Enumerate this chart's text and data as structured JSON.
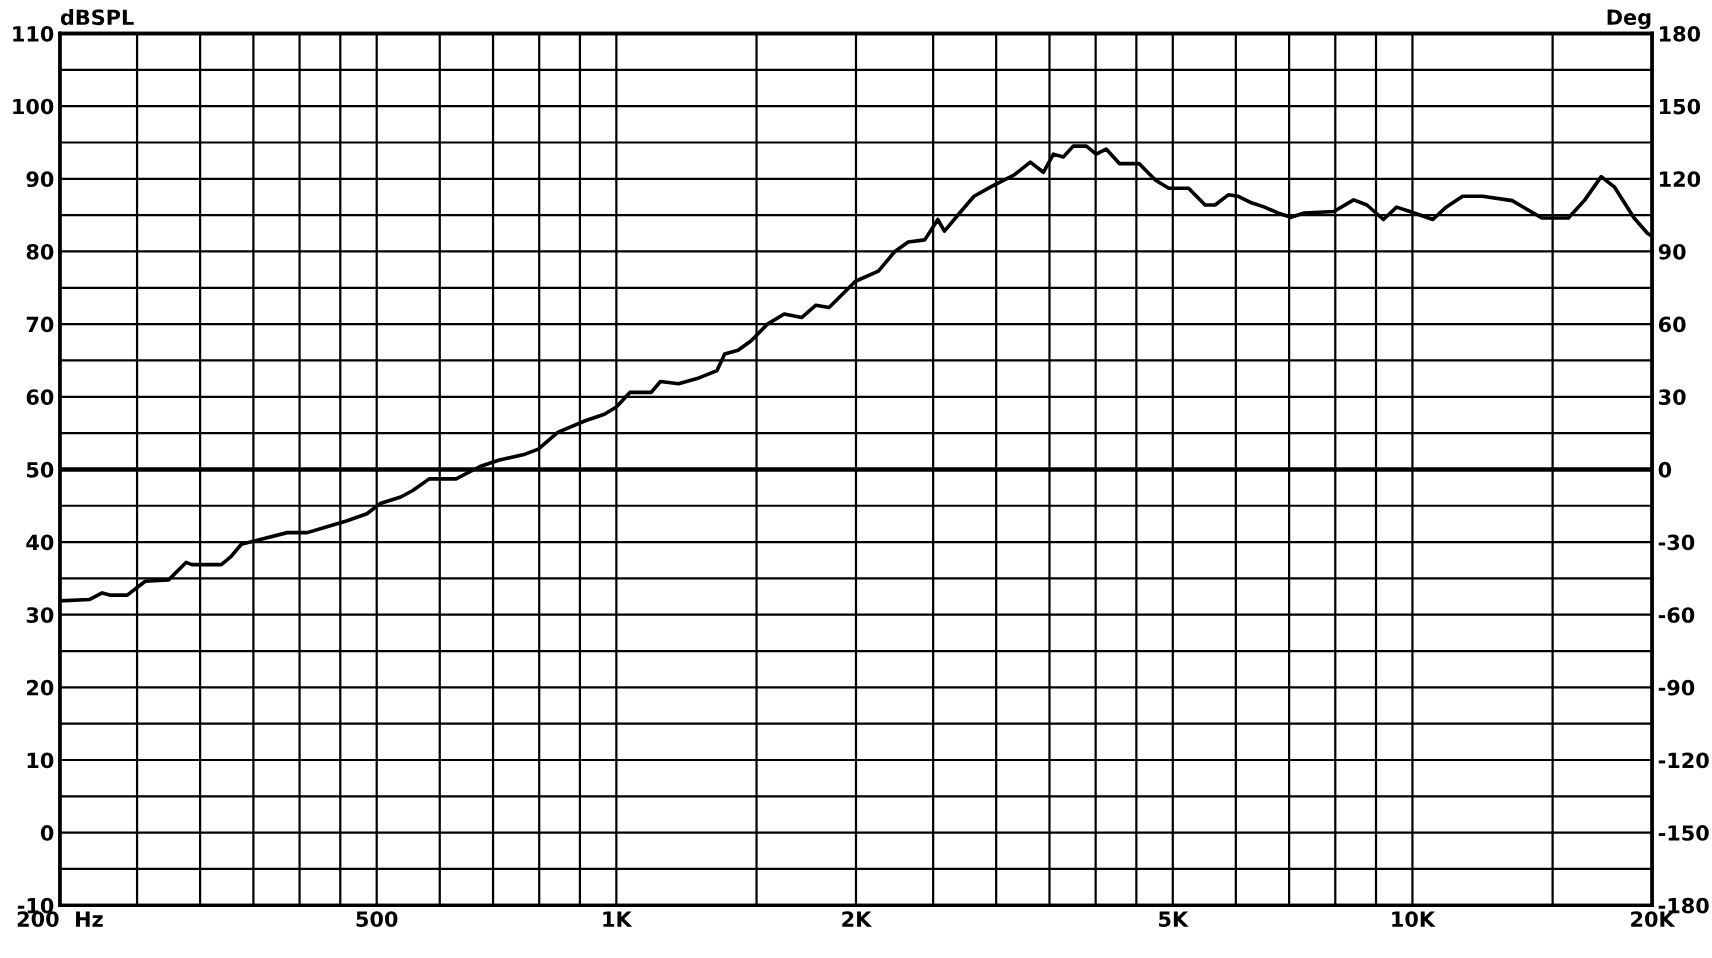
{
  "chart_data": {
    "type": "line",
    "ylabel": "dBSPL",
    "y2label": "Deg",
    "x": [
      200,
      218,
      226,
      231,
      243,
      256,
      274,
      288,
      293,
      319,
      328,
      338,
      358,
      386,
      409,
      433,
      458,
      486,
      505,
      536,
      555,
      582,
      629,
      674,
      713,
      768,
      798,
      844,
      914,
      966,
      1000,
      1040,
      1106,
      1136,
      1197,
      1263,
      1338,
      1368,
      1422,
      1477,
      1548,
      1625,
      1709,
      1781,
      1850,
      1997,
      2134,
      2238,
      2326,
      2440,
      2534,
      2583,
      2709,
      2814,
      2953,
      3157,
      3311,
      3439,
      3540,
      3643,
      3749,
      3894,
      4006,
      4124,
      4284,
      4535,
      4757,
      4943,
      5234,
      5490,
      5650,
      5871,
      6043,
      6278,
      6521,
      6775,
      7037,
      7313,
      7966,
      8437,
      8767,
      9195,
      9553,
      9927,
      10608,
      11021,
      11562,
      12245,
      13346,
      14540,
      15700,
      16465,
      17263,
      17929,
      18985,
      19733,
      20000
    ],
    "series": [
      {
        "color": "#000000",
        "values": [
          31.9,
          32.1,
          33.0,
          32.7,
          32.7,
          34.6,
          34.8,
          37.2,
          36.9,
          36.9,
          38.0,
          39.7,
          40.4,
          41.3,
          41.3,
          42.1,
          42.9,
          43.9,
          45.3,
          46.2,
          47.1,
          48.7,
          48.7,
          50.4,
          51.3,
          52.1,
          52.8,
          55.1,
          56.7,
          57.6,
          58.6,
          60.6,
          60.6,
          62.1,
          61.8,
          62.5,
          63.6,
          65.9,
          66.4,
          67.7,
          70.0,
          71.4,
          70.9,
          72.6,
          72.3,
          75.9,
          77.3,
          80.0,
          81.3,
          81.6,
          84.4,
          82.8,
          85.5,
          87.6,
          88.9,
          90.5,
          92.3,
          90.9,
          93.4,
          93.0,
          94.5,
          94.5,
          93.4,
          94.1,
          92.1,
          92.1,
          89.8,
          88.7,
          88.7,
          86.4,
          86.4,
          87.8,
          87.6,
          86.7,
          86.1,
          85.3,
          84.7,
          85.3,
          85.5,
          87.1,
          86.4,
          84.4,
          86.1,
          85.5,
          84.4,
          86.1,
          87.6,
          87.6,
          87.0,
          84.6,
          84.6,
          87.1,
          90.3,
          88.9,
          84.6,
          82.5,
          82.1
        ]
      }
    ],
    "log": "x",
    "xlim": [
      200,
      20000
    ],
    "xticks": [
      {
        "value": 200,
        "label": "200  Hz"
      },
      {
        "value": 250,
        "label": null
      },
      {
        "value": 300,
        "label": null
      },
      {
        "value": 350,
        "label": null
      },
      {
        "value": 400,
        "label": null
      },
      {
        "value": 450,
        "label": null
      },
      500,
      {
        "value": 600,
        "label": null
      },
      {
        "value": 700,
        "label": null
      },
      {
        "value": 800,
        "label": null
      },
      {
        "value": 900,
        "label": null
      },
      {
        "value": 1000,
        "label": "1K"
      },
      {
        "value": 1500,
        "label": null
      },
      {
        "value": 2000,
        "label": "2K"
      },
      {
        "value": 2500,
        "label": null
      },
      {
        "value": 3000,
        "label": null
      },
      {
        "value": 3500,
        "label": null
      },
      {
        "value": 4000,
        "label": null
      },
      {
        "value": 4500,
        "label": null
      },
      {
        "value": 5000,
        "label": "5K"
      },
      {
        "value": 6000,
        "label": null
      },
      {
        "value": 7000,
        "label": null
      },
      {
        "value": 8000,
        "label": null
      },
      {
        "value": 9000,
        "label": null
      },
      {
        "value": 10000,
        "label": "10K"
      },
      {
        "value": 15000,
        "label": null
      },
      {
        "value": 20000,
        "label": "20K"
      }
    ],
    "ylim": [
      -10,
      110
    ],
    "yticks": [
      -10,
      {
        "value": -5,
        "label": null
      },
      0,
      {
        "value": 5,
        "label": null
      },
      10,
      {
        "value": 15,
        "label": null
      },
      20,
      {
        "value": 25,
        "label": null
      },
      30,
      {
        "value": 35,
        "label": null
      },
      40,
      {
        "value": 45,
        "label": null
      },
      50,
      {
        "value": 55,
        "label": null
      },
      60,
      {
        "value": 65,
        "label": null
      },
      70,
      {
        "value": 75,
        "label": null
      },
      80,
      {
        "value": 85,
        "label": null
      },
      90,
      {
        "value": 95,
        "label": null
      },
      100,
      {
        "value": 105,
        "label": null
      },
      110
    ],
    "y2lim": [
      -180,
      180
    ],
    "y2ticks": [
      -180,
      -150,
      -120,
      -90,
      -60,
      -30,
      0,
      30,
      60,
      90,
      120,
      150,
      180
    ],
    "ref_lines": [
      {
        "axis": "y2",
        "value": 0,
        "color": "#000000"
      }
    ],
    "grid": true,
    "line_style": "solid",
    "marker": "none",
    "legend": false
  }
}
